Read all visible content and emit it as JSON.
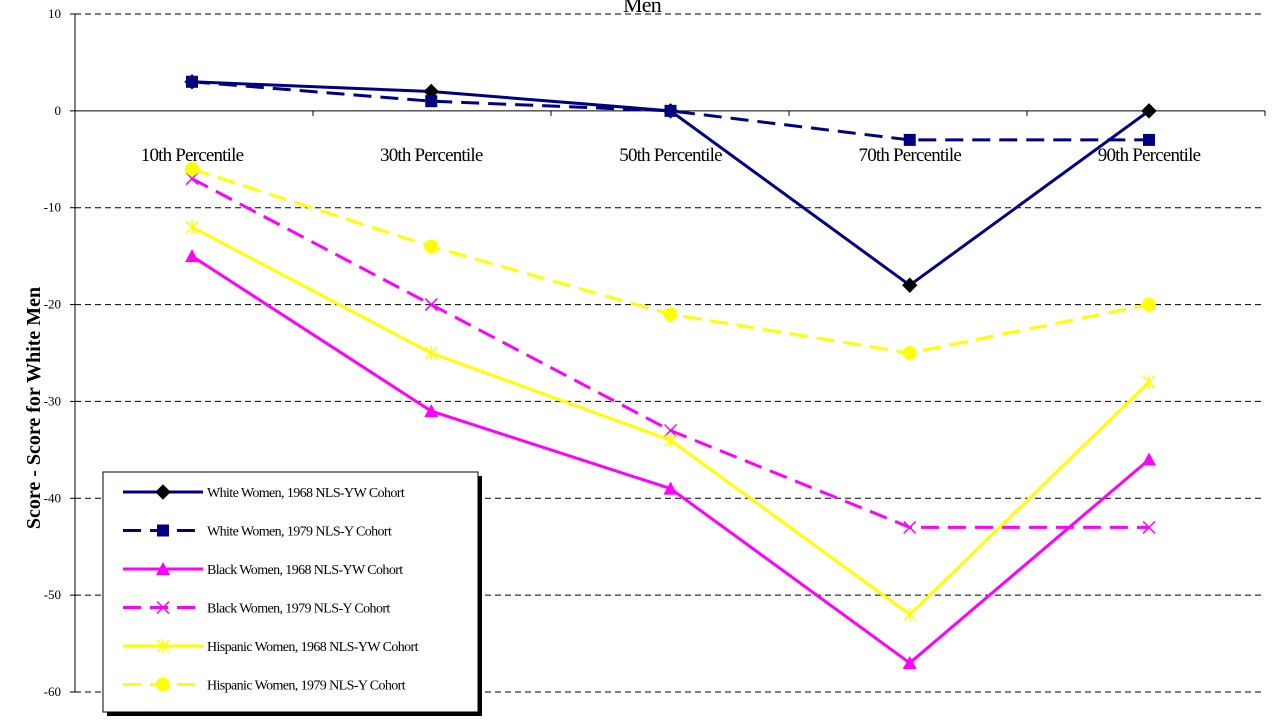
{
  "chart_data": {
    "type": "line",
    "title": "Men",
    "ylabel": "Score - Score for White Men",
    "xlabel": "",
    "ylim": [
      -60,
      10
    ],
    "yticks": [
      10,
      0,
      -10,
      -20,
      -30,
      -40,
      -50,
      -60
    ],
    "grid": "horizontal-dashed",
    "legend_position": "bottom-left",
    "categories": [
      "10th Percentile",
      "30th Percentile",
      "50th Percentile",
      "70th Percentile",
      "90th Percentile"
    ],
    "series": [
      {
        "name": "White Women, 1968 NLS-YW Cohort",
        "values": [
          3,
          2,
          0,
          -18,
          0
        ],
        "color": "#000080",
        "dash": "solid",
        "marker": "diamond",
        "marker_color": "#000000"
      },
      {
        "name": "White Women, 1979 NLS-Y Cohort",
        "values": [
          3,
          1,
          0,
          -3,
          -3
        ],
        "color": "#000080",
        "dash": "dashed",
        "marker": "square",
        "marker_color": "#000080"
      },
      {
        "name": "Black Women, 1968 NLS-YW Cohort",
        "values": [
          -15,
          -31,
          -39,
          -57,
          -36
        ],
        "color": "#FF00FF",
        "dash": "solid",
        "marker": "triangle",
        "marker_color": "#FF00FF"
      },
      {
        "name": "Black Women, 1979 NLS-Y Cohort",
        "values": [
          -7,
          -20,
          -33,
          -43,
          -43
        ],
        "color": "#FF00FF",
        "dash": "dashed",
        "marker": "x",
        "marker_color": "#FF00FF"
      },
      {
        "name": "Hispanic Women, 1968 NLS-YW Cohort",
        "values": [
          -12,
          -25,
          -34,
          -52,
          -28
        ],
        "color": "#FFFF00",
        "dash": "solid",
        "marker": "star",
        "marker_color": "#FFFF00"
      },
      {
        "name": "Hispanic Women, 1979 NLS-Y Cohort",
        "values": [
          -6,
          -14,
          -21,
          -25,
          -20
        ],
        "color": "#FFFF00",
        "dash": "dashed",
        "marker": "circle",
        "marker_color": "#FFFF00"
      }
    ]
  }
}
